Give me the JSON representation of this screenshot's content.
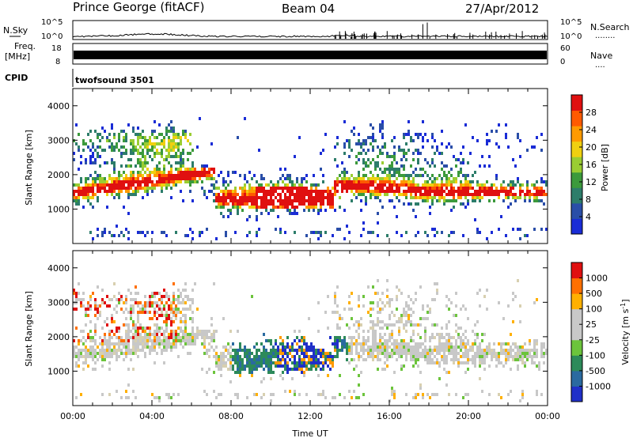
{
  "header": {
    "station": "Prince George (fitACF)",
    "beam": "Beam 04",
    "date": "27/Apr/2012"
  },
  "panels": {
    "nsky": {
      "label": "N.Sky",
      "right_label": "N.Search",
      "right_dots": "........",
      "ticks_left": [
        "10^5",
        "10^0"
      ],
      "ticks_right": [
        "10^5",
        "10^0"
      ]
    },
    "freq": {
      "label_line1": "Freq.",
      "label_line2": "[MHz]",
      "right_label": "Nave",
      "right_dots": "....",
      "ticks_left": [
        "18",
        "8"
      ],
      "ticks_right": [
        "60",
        "0"
      ]
    },
    "cpid": {
      "label": "CPID",
      "value": "twofsound 3501"
    }
  },
  "chart_data": [
    {
      "type": "heatmap",
      "name": "power",
      "xlabel": "",
      "ylabel": "Slant Range [km]",
      "xlim": [
        "00:00",
        "24:00"
      ],
      "ylim": [
        0,
        4500
      ],
      "yticks": [
        "1000",
        "2000",
        "3000",
        "4000"
      ],
      "colorbar": {
        "label": "Power [dB]",
        "ticks": [
          "4",
          "8",
          "12",
          "16",
          "20",
          "24",
          "28"
        ],
        "colors": [
          "#1a2cd6",
          "#2a4ea8",
          "#2d7d6a",
          "#3c9a3c",
          "#9acd32",
          "#f0d010",
          "#ff9a00",
          "#ff5a00",
          "#e01010"
        ]
      }
    },
    {
      "type": "heatmap",
      "name": "velocity",
      "xlabel": "Time UT",
      "ylabel": "Slant Range [km]",
      "xlim": [
        "00:00",
        "24:00"
      ],
      "ylim": [
        0,
        4500
      ],
      "xticks": [
        "00:00",
        "04:00",
        "08:00",
        "12:00",
        "16:00",
        "20:00",
        "00:00"
      ],
      "yticks": [
        "1000",
        "2000",
        "3000",
        "4000"
      ],
      "colorbar": {
        "label": "Velocity [m s",
        "label_sup": "-1",
        "label_end": "]",
        "ticks": [
          "1000",
          "500",
          "100",
          "25",
          "-25",
          "-100",
          "-500",
          "-1000"
        ],
        "colors": [
          "#2030c8",
          "#2a6aa0",
          "#2d8a5a",
          "#6cc43c",
          "#c8c8c8",
          "#c8c8c8",
          "#ffb000",
          "#ff7000",
          "#e01010"
        ]
      }
    }
  ]
}
